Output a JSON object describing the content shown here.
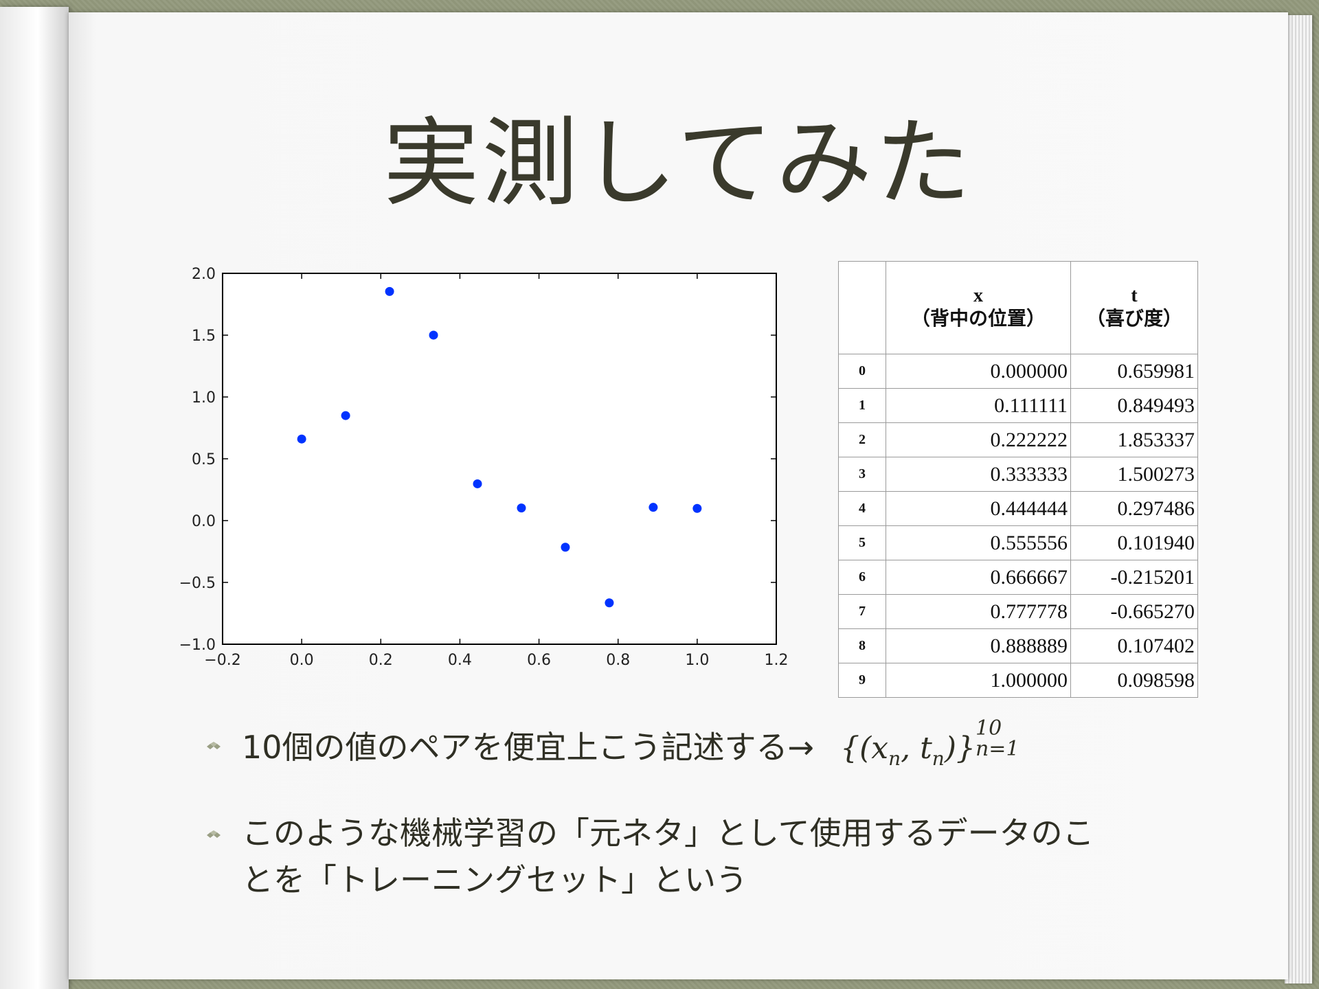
{
  "slide": {
    "title": "実測してみた"
  },
  "chart_data": {
    "type": "scatter",
    "x": [
      0.0,
      0.111111,
      0.222222,
      0.333333,
      0.444444,
      0.555556,
      0.666667,
      0.777778,
      0.888889,
      1.0
    ],
    "y": [
      0.659981,
      0.849493,
      1.853337,
      1.500273,
      0.297486,
      0.10194,
      -0.215201,
      -0.66527,
      0.107402,
      0.098598
    ],
    "xlim": [
      -0.2,
      1.2
    ],
    "ylim": [
      -1.0,
      2.0
    ],
    "x_ticks": [
      "−0.2",
      "0.0",
      "0.2",
      "0.4",
      "0.6",
      "0.8",
      "1.0",
      "1.2"
    ],
    "y_ticks": [
      "2.0",
      "1.5",
      "1.0",
      "0.5",
      "0.0",
      "−0.5",
      "−1.0"
    ],
    "x_tick_values": [
      -0.2,
      0.0,
      0.2,
      0.4,
      0.6,
      0.8,
      1.0,
      1.2
    ],
    "y_tick_values": [
      2.0,
      1.5,
      1.0,
      0.5,
      0.0,
      -0.5,
      -1.0
    ],
    "point_color": "#0033ff",
    "grid": false
  },
  "table": {
    "headers": {
      "x_line1": "x",
      "x_line2": "（背中の位置）",
      "t_line1": "t",
      "t_line2": "（喜び度）"
    },
    "rows": [
      {
        "idx": "0",
        "x": "0.000000",
        "t": "0.659981"
      },
      {
        "idx": "1",
        "x": "0.111111",
        "t": "0.849493"
      },
      {
        "idx": "2",
        "x": "0.222222",
        "t": "1.853337"
      },
      {
        "idx": "3",
        "x": "0.333333",
        "t": "1.500273"
      },
      {
        "idx": "4",
        "x": "0.444444",
        "t": "0.297486"
      },
      {
        "idx": "5",
        "x": "0.555556",
        "t": "0.101940"
      },
      {
        "idx": "6",
        "x": "0.666667",
        "t": "-0.215201"
      },
      {
        "idx": "7",
        "x": "0.777778",
        "t": "-0.665270"
      },
      {
        "idx": "8",
        "x": "0.888889",
        "t": "0.107402"
      },
      {
        "idx": "9",
        "x": "1.000000",
        "t": "0.098598"
      }
    ]
  },
  "bullets": {
    "item1_text": "10個の値のペアを便宜上こう記述する→",
    "item1_formula_body": "{(x",
    "item1_formula_sub1": "n",
    "item1_formula_mid": ", t",
    "item1_formula_sub2": "n",
    "item1_formula_close": ")}",
    "item1_formula_sup": "10",
    "item1_formula_lower": "n=1",
    "item2_line1": "このような機械学習の「元ネタ」として使用するデータのこ",
    "item2_line2": "とを「トレーニングセット」という"
  }
}
